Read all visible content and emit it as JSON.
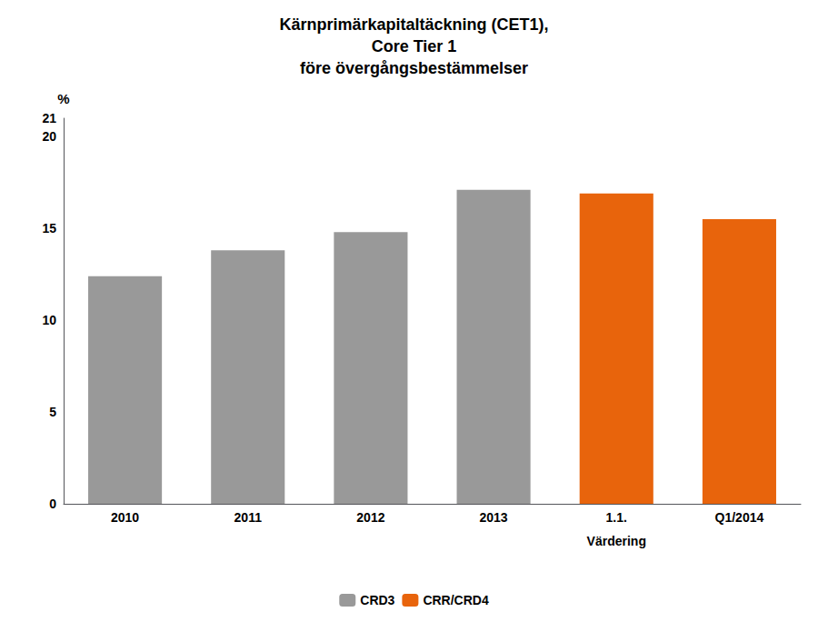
{
  "chart_data": {
    "type": "bar",
    "title": "Kärnprimärkapitaltäckning (CET1),\nCore Tier 1\nföre övergångsbestämmelser",
    "ylabel": "%",
    "categories": [
      "2010",
      "2011",
      "2012",
      "2013",
      "1.1.",
      "Q1/2014"
    ],
    "series": [
      {
        "name": "CRD3",
        "color": "#999999",
        "values": [
          12.4,
          13.8,
          14.8,
          17.1,
          null,
          null
        ]
      },
      {
        "name": "CRR/CRD4",
        "color": "#e8640c",
        "values": [
          null,
          null,
          null,
          null,
          16.9,
          15.5
        ]
      }
    ],
    "annotations": [
      {
        "text": "Värdering",
        "x": "1.1."
      }
    ],
    "ylim": [
      0,
      21
    ],
    "yticks": [
      0,
      5,
      10,
      15,
      20
    ],
    "grid": false,
    "legend": "bottom"
  }
}
